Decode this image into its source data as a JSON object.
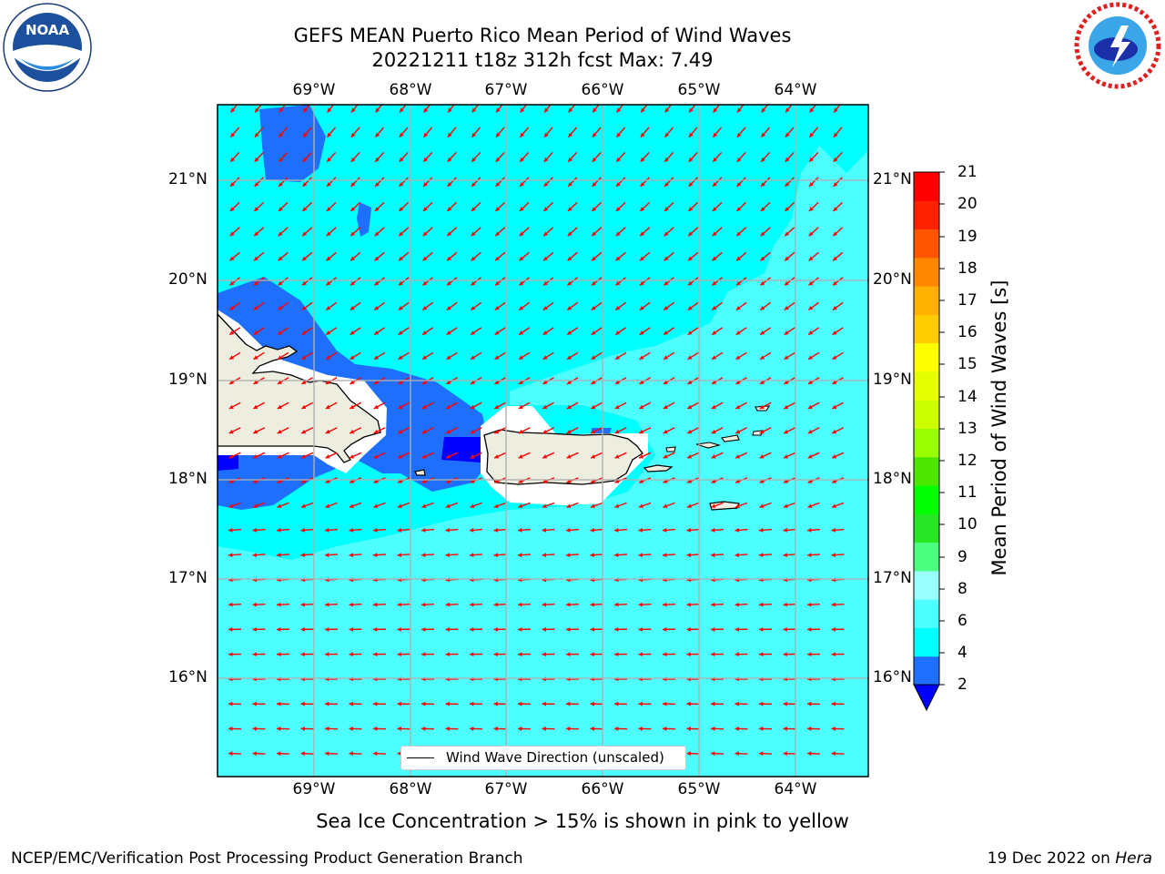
{
  "header": {
    "title": "GEFS MEAN Puerto Rico Mean Period of Wind Waves",
    "subtitle": "20221211 t18z 312h fcst   Max: 7.49"
  },
  "logos": {
    "left": {
      "name": "noaa-logo",
      "text": "NOAA",
      "ring_text": "NATIONAL OCEANIC AND ATMOSPHERIC ADMINISTRATION · U.S. DEPARTMENT OF COMMERCE"
    },
    "right": {
      "name": "nws-logo",
      "ring_text": "NATIONAL WEATHER SERVICE"
    }
  },
  "map": {
    "lon_labels": [
      "69°W",
      "68°W",
      "67°W",
      "66°W",
      "65°W",
      "64°W"
    ],
    "lat_labels": [
      "21°N",
      "20°N",
      "19°N",
      "18°N",
      "17°N",
      "16°N"
    ],
    "extent": {
      "lon": [
        -70,
        -63.25
      ],
      "lat": [
        15,
        21.75
      ]
    },
    "background_color": "#4dffff",
    "land_color": "#eeeee0",
    "arrow_color": "#ff0000",
    "legend_label": "Wind Wave Direction (unscaled)"
  },
  "colorbar": {
    "title": "Mean Period of Wind Waves [s]",
    "ticks": [
      "2",
      "4",
      "6",
      "8",
      "9",
      "10",
      "11",
      "12",
      "13",
      "14",
      "15",
      "16",
      "17",
      "18",
      "19",
      "20",
      "21"
    ],
    "colors": [
      "#1f6fff",
      "#00ffff",
      "#4dffff",
      "#9affff",
      "#4dff80",
      "#26e626",
      "#00ff00",
      "#4de600",
      "#99ff00",
      "#ccff00",
      "#e6ff00",
      "#ffff00",
      "#ffcc00",
      "#ffb000",
      "#ff8800",
      "#ff5500",
      "#ff2200",
      "#ff0000"
    ],
    "under_color": "#0000ff"
  },
  "footer": {
    "note": "Sea Ice Concentration > 15% is shown in pink to yellow",
    "left": "NCEP/EMC/Verification Post Processing Product Generation Branch",
    "right_prefix": "19 Dec 2022 on ",
    "right_host": "Hera"
  }
}
